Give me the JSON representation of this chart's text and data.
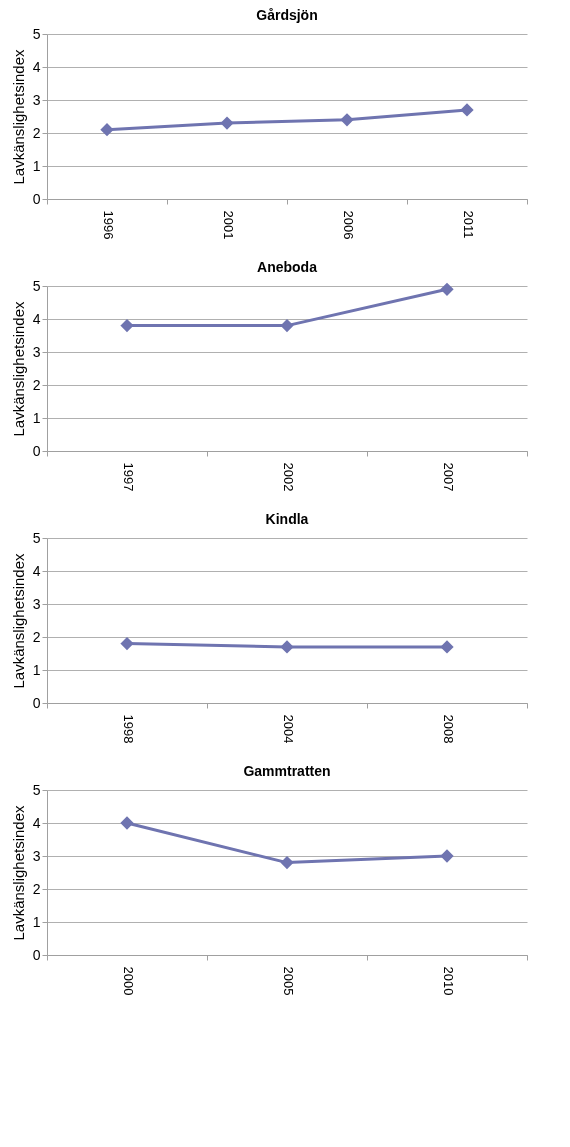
{
  "chart_data": [
    {
      "type": "line",
      "title": "Gårdsjön",
      "ylabel": "Lavkänslighetsindex",
      "categories": [
        "1996",
        "2001",
        "2006",
        "2011"
      ],
      "series": [
        {
          "color": "#6f74b0",
          "values": [
            2.1,
            2.3,
            2.4,
            2.7
          ]
        }
      ],
      "ylim": [
        0,
        5
      ],
      "yticks": [
        0,
        1,
        2,
        3,
        4,
        5
      ],
      "grid": "y",
      "marker": "diamond",
      "line_style": "solid"
    },
    {
      "type": "line",
      "title": "Aneboda",
      "ylabel": "Lavkänslighetsindex",
      "categories": [
        "1997",
        "2002",
        "2007"
      ],
      "series": [
        {
          "color": "#6f74b0",
          "values": [
            3.8,
            3.8,
            4.9
          ]
        }
      ],
      "ylim": [
        0,
        5
      ],
      "yticks": [
        0,
        1,
        2,
        3,
        4,
        5
      ],
      "grid": "y",
      "marker": "diamond",
      "line_style": "solid"
    },
    {
      "type": "line",
      "title": "Kindla",
      "ylabel": "Lavkänslighetsindex",
      "categories": [
        "1998",
        "2004",
        "2008"
      ],
      "series": [
        {
          "color": "#6f74b0",
          "values": [
            1.8,
            1.7,
            1.7
          ]
        }
      ],
      "ylim": [
        0,
        5
      ],
      "yticks": [
        0,
        1,
        2,
        3,
        4,
        5
      ],
      "grid": "y",
      "marker": "diamond",
      "line_style": "solid"
    },
    {
      "type": "line",
      "title": "Gammtratten",
      "ylabel": "Lavkänslighetsindex",
      "categories": [
        "2000",
        "2005",
        "2010"
      ],
      "series": [
        {
          "color": "#6f74b0",
          "values": [
            4.0,
            2.8,
            3.0
          ]
        }
      ],
      "ylim": [
        0,
        5
      ],
      "yticks": [
        0,
        1,
        2,
        3,
        4,
        5
      ],
      "grid": "y",
      "marker": "diamond",
      "line_style": "solid"
    }
  ]
}
